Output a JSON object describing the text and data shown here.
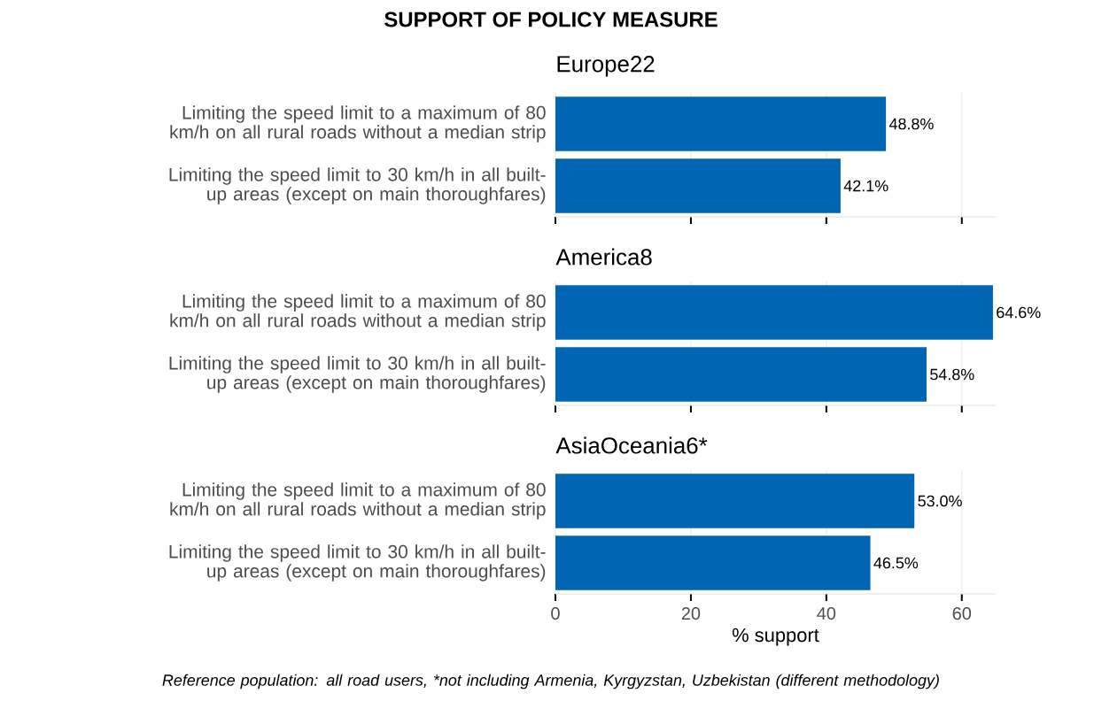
{
  "chart_data": [
    {
      "type": "bar",
      "orientation": "horizontal",
      "title": "SUPPORT OF POLICY MEASURE",
      "subtitle": "Europe22",
      "categories": [
        "Limiting the speed limit to a maximum of 80 km/h on all rural roads without a median strip",
        "Limiting the speed limit to 30 km/h in all built-up areas (except on main thoroughfares)"
      ],
      "values": [
        48.8,
        42.1
      ],
      "value_labels": [
        "48.8%",
        "42.1%"
      ],
      "color": "#0066b3",
      "xlim": [
        0,
        65
      ],
      "xticks": [
        0,
        20,
        40,
        60
      ],
      "grid": "x",
      "tick_labels": "y"
    },
    {
      "type": "bar",
      "orientation": "horizontal",
      "subtitle": "America8",
      "categories": [
        "Limiting the speed limit to a maximum of 80 km/h on all rural roads without a median strip",
        "Limiting the speed limit to 30 km/h in all built-up areas (except on main thoroughfares)"
      ],
      "values": [
        64.6,
        54.8
      ],
      "value_labels": [
        "64.6%",
        "54.8%"
      ],
      "color": "#0066b3",
      "xlim": [
        0,
        65
      ],
      "xticks": [
        0,
        20,
        40,
        60
      ],
      "grid": "x",
      "tick_labels": "y"
    },
    {
      "type": "bar",
      "orientation": "horizontal",
      "subtitle": "AsiaOceania6*",
      "categories": [
        "Limiting the speed limit to a maximum of 80 km/h on all rural roads without a median strip",
        "Limiting the speed limit to 30 km/h in all built-up areas (except on main thoroughfares)"
      ],
      "values": [
        53.0,
        46.5
      ],
      "value_labels": [
        "53.0%",
        "46.5%"
      ],
      "color": "#0066b3",
      "xlim": [
        0,
        65
      ],
      "xticks": [
        0,
        20,
        40,
        60
      ],
      "grid": "x",
      "xlabel": "% support",
      "annotations": [
        "Reference population: all road users, *not including Armenia, Kyrgyzstan, Uzbekistan (different methodology)"
      ]
    }
  ]
}
